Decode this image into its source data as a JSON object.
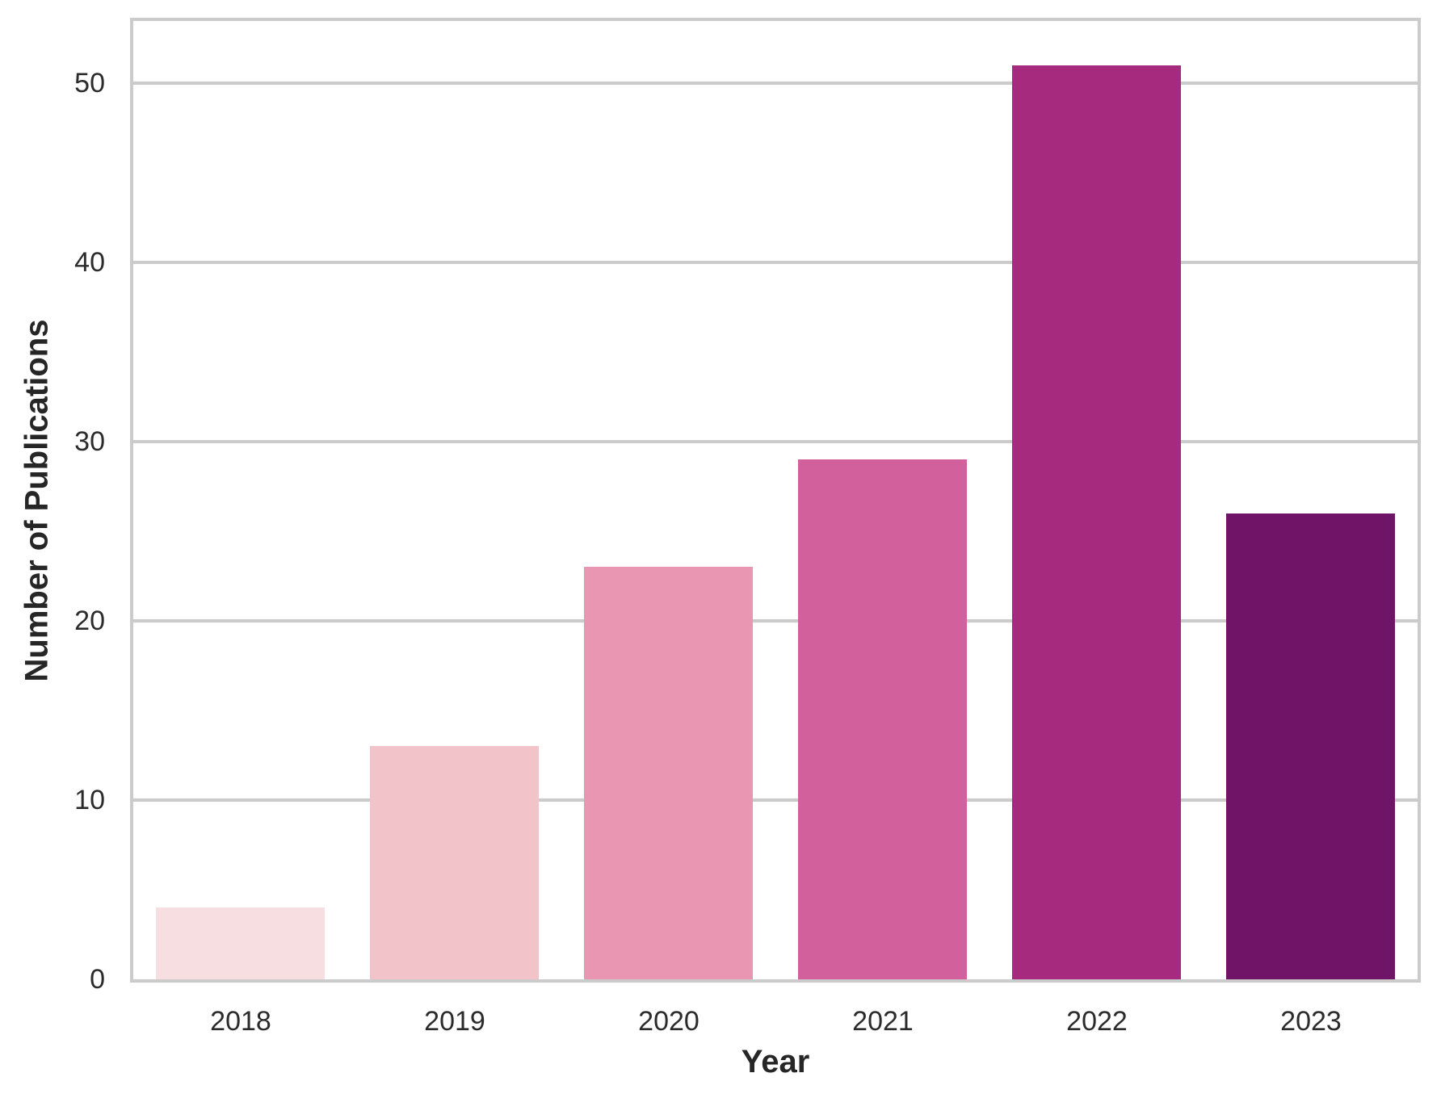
{
  "chart_data": {
    "type": "bar",
    "categories": [
      "2018",
      "2019",
      "2020",
      "2021",
      "2022",
      "2023"
    ],
    "values": [
      4,
      13,
      23,
      29,
      51,
      26
    ],
    "bar_colors": [
      "#f7dee1",
      "#f2c3c8",
      "#e996b2",
      "#d2609c",
      "#a62a7d",
      "#701467"
    ],
    "title": "",
    "xlabel": "Year",
    "ylabel": "Number of Publications",
    "yticks": [
      0,
      10,
      20,
      30,
      40,
      50
    ],
    "ylim": [
      0,
      53.47
    ],
    "grid": "horizontal",
    "grid_color": "#cbcbcb",
    "frame_color": "#cbcbcb",
    "tick_text_color": "#2b2b2b",
    "label_text_color": "#262626",
    "background": "#ffffff",
    "legend": null
  }
}
